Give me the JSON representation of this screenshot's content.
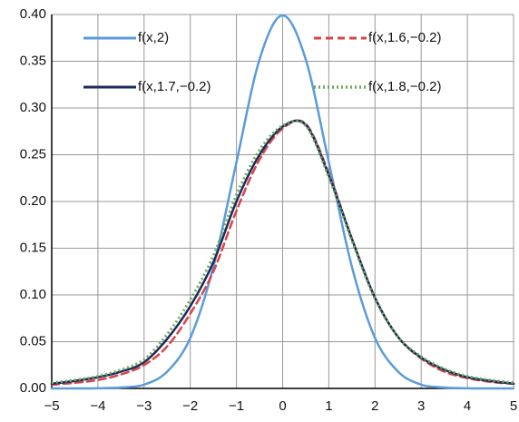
{
  "chart_data": {
    "type": "line",
    "x": [
      -5,
      -4.5,
      -4,
      -3.5,
      -3,
      -2.5,
      -2,
      -1.5,
      -1,
      -0.5,
      0,
      0.5,
      1,
      1.5,
      2,
      2.5,
      3,
      3.5,
      4,
      4.5,
      5
    ],
    "series": [
      {
        "name": "f(x,2)",
        "color": "#5b9bdc",
        "style": "solid",
        "values": [
          0,
          0,
          0.0001,
          0.001,
          0.004,
          0.018,
          0.054,
          0.13,
          0.242,
          0.352,
          0.399,
          0.352,
          0.242,
          0.13,
          0.054,
          0.018,
          0.004,
          0.001,
          0.0001,
          0,
          0
        ]
      },
      {
        "name": "f(x,1.6,−0.2)",
        "color": "#d9434a",
        "style": "dashed",
        "values": [
          0.004,
          0.006,
          0.009,
          0.015,
          0.025,
          0.045,
          0.08,
          0.125,
          0.19,
          0.245,
          0.278,
          0.283,
          0.23,
          0.16,
          0.097,
          0.055,
          0.032,
          0.018,
          0.011,
          0.007,
          0.005
        ]
      },
      {
        "name": "f(x,1.7,−0.2)",
        "color": "#1c2a5c",
        "style": "solid",
        "values": [
          0.005,
          0.008,
          0.012,
          0.018,
          0.028,
          0.053,
          0.088,
          0.135,
          0.2,
          0.25,
          0.28,
          0.282,
          0.228,
          0.16,
          0.097,
          0.055,
          0.033,
          0.02,
          0.012,
          0.008,
          0.005
        ]
      },
      {
        "name": "f(x,1.8,−0.2)",
        "color": "#6aab55",
        "style": "dotted",
        "values": [
          0.006,
          0.009,
          0.013,
          0.02,
          0.031,
          0.058,
          0.095,
          0.142,
          0.207,
          0.255,
          0.281,
          0.281,
          0.226,
          0.158,
          0.096,
          0.055,
          0.034,
          0.021,
          0.013,
          0.009,
          0.006
        ]
      }
    ],
    "xlim": [
      -5,
      5
    ],
    "xticks": [
      {
        "value": -5,
        "label": "−5"
      },
      {
        "value": -4,
        "label": "−4"
      },
      {
        "value": -3,
        "label": "−3"
      },
      {
        "value": -2,
        "label": "−2"
      },
      {
        "value": -1,
        "label": "−1"
      },
      0,
      1,
      2,
      3,
      4,
      5
    ],
    "ylim": [
      0,
      0.4
    ],
    "yticks": [
      {
        "value": 0,
        "label": "0.00"
      },
      {
        "value": 0.05,
        "label": "0.05"
      },
      {
        "value": 0.1,
        "label": "0.10"
      },
      {
        "value": 0.15,
        "label": "0.15"
      },
      {
        "value": 0.2,
        "label": "0.20"
      },
      {
        "value": 0.25,
        "label": "0.25"
      },
      {
        "value": 0.3,
        "label": "0.30"
      },
      {
        "value": 0.35,
        "label": "0.35"
      },
      {
        "value": 0.4,
        "label": "0.40"
      }
    ],
    "grid": true
  }
}
